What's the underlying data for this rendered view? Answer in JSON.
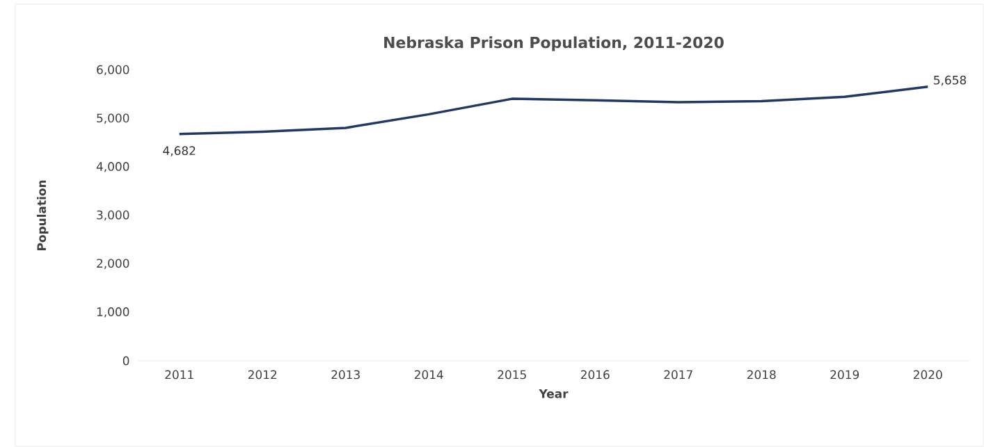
{
  "chart_data": {
    "type": "line",
    "title": "Nebraska Prison Population, 2011-2020",
    "xlabel": "Year",
    "ylabel": "Population",
    "categories": [
      "2011",
      "2012",
      "2013",
      "2014",
      "2015",
      "2016",
      "2017",
      "2018",
      "2019",
      "2020"
    ],
    "values": [
      4682,
      4730,
      4810,
      5090,
      5410,
      5380,
      5340,
      5360,
      5450,
      5658
    ],
    "value_labels": [
      "4,682",
      null,
      null,
      null,
      null,
      null,
      null,
      null,
      null,
      "5,658"
    ],
    "color": "#203864",
    "marker": "none",
    "line_style": "solid",
    "grid": false,
    "ylim": [
      0,
      6000
    ],
    "yticks": [
      {
        "value": 0,
        "label": "0"
      },
      {
        "value": 1000,
        "label": "1,000"
      },
      {
        "value": 2000,
        "label": "2,000"
      },
      {
        "value": 3000,
        "label": "3,000"
      },
      {
        "value": 4000,
        "label": "4,000"
      },
      {
        "value": 5000,
        "label": "5,000"
      },
      {
        "value": 6000,
        "label": "6,000"
      }
    ]
  }
}
